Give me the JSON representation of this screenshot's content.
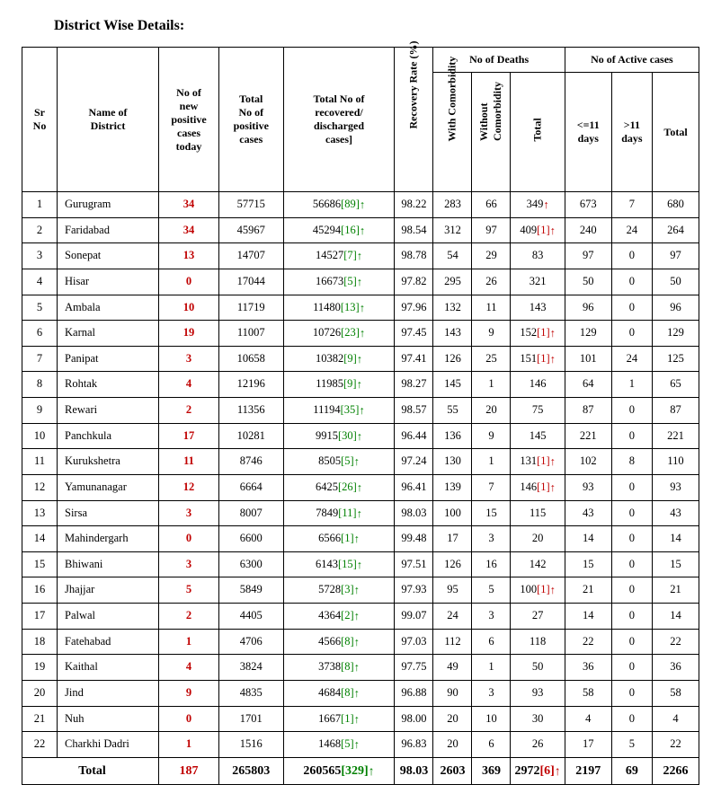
{
  "title": "District Wise Details:",
  "header": {
    "sr": "Sr\nNo",
    "district": "Name of\nDistrict",
    "new": "No of\nnew\npositive\ncases\ntoday",
    "total_pos": "Total\nNo of\npositive\ncases",
    "recovered": "Total No of\nrecovered/\ndischarged\ncases]",
    "recovery_rate": "Recovery Rate (%)",
    "deaths_group": "No of Deaths",
    "deaths_with": "With Comorbidity",
    "deaths_without": "Without\nComorbidity",
    "deaths_total": "Total",
    "active_group": "No of Active cases",
    "active_le11": "<=11\ndays",
    "active_gt11": ">11\ndays",
    "active_total": "Total"
  },
  "rows": [
    {
      "sr": "1",
      "district": "Gurugram",
      "new": "34",
      "total_pos": "57715",
      "rec_base": "56686",
      "rec_delta": "89",
      "rate": "98.22",
      "d_with": "283",
      "d_wo": "66",
      "d_total": "349",
      "d_delta": "",
      "a_le": "673",
      "a_gt": "7",
      "a_t": "680",
      "d_arrow": true
    },
    {
      "sr": "2",
      "district": "Faridabad",
      "new": "34",
      "total_pos": "45967",
      "rec_base": "45294",
      "rec_delta": "16",
      "rate": "98.54",
      "d_with": "312",
      "d_wo": "97",
      "d_total": "409",
      "d_delta": "1",
      "a_le": "240",
      "a_gt": "24",
      "a_t": "264",
      "d_arrow": true
    },
    {
      "sr": "3",
      "district": "Sonepat",
      "new": "13",
      "total_pos": "14707",
      "rec_base": "14527",
      "rec_delta": "7",
      "rate": "98.78",
      "d_with": "54",
      "d_wo": "29",
      "d_total": "83",
      "d_delta": "",
      "a_le": "97",
      "a_gt": "0",
      "a_t": "97",
      "d_arrow": false
    },
    {
      "sr": "4",
      "district": "Hisar",
      "new": "0",
      "total_pos": "17044",
      "rec_base": "16673",
      "rec_delta": "5",
      "rate": "97.82",
      "d_with": "295",
      "d_wo": "26",
      "d_total": "321",
      "d_delta": "",
      "a_le": "50",
      "a_gt": "0",
      "a_t": "50",
      "d_arrow": false
    },
    {
      "sr": "5",
      "district": "Ambala",
      "new": "10",
      "total_pos": "11719",
      "rec_base": "11480",
      "rec_delta": "13",
      "rate": "97.96",
      "d_with": "132",
      "d_wo": "11",
      "d_total": "143",
      "d_delta": "",
      "a_le": "96",
      "a_gt": "0",
      "a_t": "96",
      "d_arrow": false
    },
    {
      "sr": "6",
      "district": "Karnal",
      "new": "19",
      "total_pos": "11007",
      "rec_base": "10726",
      "rec_delta": "23",
      "rate": "97.45",
      "d_with": "143",
      "d_wo": "9",
      "d_total": "152",
      "d_delta": "1",
      "a_le": "129",
      "a_gt": "0",
      "a_t": "129",
      "d_arrow": true
    },
    {
      "sr": "7",
      "district": "Panipat",
      "new": "3",
      "total_pos": "10658",
      "rec_base": "10382",
      "rec_delta": "9",
      "rate": "97.41",
      "d_with": "126",
      "d_wo": "25",
      "d_total": "151",
      "d_delta": "1",
      "a_le": "101",
      "a_gt": "24",
      "a_t": "125",
      "d_arrow": true
    },
    {
      "sr": "8",
      "district": "Rohtak",
      "new": "4",
      "total_pos": "12196",
      "rec_base": "11985",
      "rec_delta": "9",
      "rate": "98.27",
      "d_with": "145",
      "d_wo": "1",
      "d_total": "146",
      "d_delta": "",
      "a_le": "64",
      "a_gt": "1",
      "a_t": "65",
      "d_arrow": false
    },
    {
      "sr": "9",
      "district": "Rewari",
      "new": "2",
      "total_pos": "11356",
      "rec_base": "11194",
      "rec_delta": "35",
      "rate": "98.57",
      "d_with": "55",
      "d_wo": "20",
      "d_total": "75",
      "d_delta": "",
      "a_le": "87",
      "a_gt": "0",
      "a_t": "87",
      "d_arrow": false
    },
    {
      "sr": "10",
      "district": "Panchkula",
      "new": "17",
      "total_pos": "10281",
      "rec_base": "9915",
      "rec_delta": "30",
      "rate": "96.44",
      "d_with": "136",
      "d_wo": "9",
      "d_total": "145",
      "d_delta": "",
      "a_le": "221",
      "a_gt": "0",
      "a_t": "221",
      "d_arrow": false
    },
    {
      "sr": "11",
      "district": "Kurukshetra",
      "new": "11",
      "total_pos": "8746",
      "rec_base": "8505",
      "rec_delta": "5",
      "rate": "97.24",
      "d_with": "130",
      "d_wo": "1",
      "d_total": "131",
      "d_delta": "1",
      "a_le": "102",
      "a_gt": "8",
      "a_t": "110",
      "d_arrow": true
    },
    {
      "sr": "12",
      "district": "Yamunanagar",
      "new": "12",
      "total_pos": "6664",
      "rec_base": "6425",
      "rec_delta": "26",
      "rate": "96.41",
      "d_with": "139",
      "d_wo": "7",
      "d_total": "146",
      "d_delta": "1",
      "a_le": "93",
      "a_gt": "0",
      "a_t": "93",
      "d_arrow": true
    },
    {
      "sr": "13",
      "district": "Sirsa",
      "new": "3",
      "total_pos": "8007",
      "rec_base": "7849",
      "rec_delta": "11",
      "rate": "98.03",
      "d_with": "100",
      "d_wo": "15",
      "d_total": "115",
      "d_delta": "",
      "a_le": "43",
      "a_gt": "0",
      "a_t": "43",
      "d_arrow": false
    },
    {
      "sr": "14",
      "district": "Mahindergarh",
      "new": "0",
      "total_pos": "6600",
      "rec_base": "6566",
      "rec_delta": "1",
      "rate": "99.48",
      "d_with": "17",
      "d_wo": "3",
      "d_total": "20",
      "d_delta": "",
      "a_le": "14",
      "a_gt": "0",
      "a_t": "14",
      "d_arrow": false
    },
    {
      "sr": "15",
      "district": "Bhiwani",
      "new": "3",
      "total_pos": "6300",
      "rec_base": "6143",
      "rec_delta": "15",
      "rate": "97.51",
      "d_with": "126",
      "d_wo": "16",
      "d_total": "142",
      "d_delta": "",
      "a_le": "15",
      "a_gt": "0",
      "a_t": "15",
      "d_arrow": false
    },
    {
      "sr": "16",
      "district": "Jhajjar",
      "new": "5",
      "total_pos": "5849",
      "rec_base": "5728",
      "rec_delta": "3",
      "rate": "97.93",
      "d_with": "95",
      "d_wo": "5",
      "d_total": "100",
      "d_delta": "1",
      "a_le": "21",
      "a_gt": "0",
      "a_t": "21",
      "d_arrow": true
    },
    {
      "sr": "17",
      "district": "Palwal",
      "new": "2",
      "total_pos": "4405",
      "rec_base": "4364",
      "rec_delta": "2",
      "rate": "99.07",
      "d_with": "24",
      "d_wo": "3",
      "d_total": "27",
      "d_delta": "",
      "a_le": "14",
      "a_gt": "0",
      "a_t": "14",
      "d_arrow": false
    },
    {
      "sr": "18",
      "district": "Fatehabad",
      "new": "1",
      "total_pos": "4706",
      "rec_base": "4566",
      "rec_delta": "8",
      "rate": "97.03",
      "d_with": "112",
      "d_wo": "6",
      "d_total": "118",
      "d_delta": "",
      "a_le": "22",
      "a_gt": "0",
      "a_t": "22",
      "d_arrow": false
    },
    {
      "sr": "19",
      "district": "Kaithal",
      "new": "4",
      "total_pos": "3824",
      "rec_base": "3738",
      "rec_delta": "8",
      "rate": "97.75",
      "d_with": "49",
      "d_wo": "1",
      "d_total": "50",
      "d_delta": "",
      "a_le": "36",
      "a_gt": "0",
      "a_t": "36",
      "d_arrow": false
    },
    {
      "sr": "20",
      "district": "Jind",
      "new": "9",
      "total_pos": "4835",
      "rec_base": "4684",
      "rec_delta": "8",
      "rate": "96.88",
      "d_with": "90",
      "d_wo": "3",
      "d_total": "93",
      "d_delta": "",
      "a_le": "58",
      "a_gt": "0",
      "a_t": "58",
      "d_arrow": false
    },
    {
      "sr": "21",
      "district": "Nuh",
      "new": "0",
      "total_pos": "1701",
      "rec_base": "1667",
      "rec_delta": "1",
      "rate": "98.00",
      "d_with": "20",
      "d_wo": "10",
      "d_total": "30",
      "d_delta": "",
      "a_le": "4",
      "a_gt": "0",
      "a_t": "4",
      "d_arrow": false
    },
    {
      "sr": "22",
      "district": "Charkhi Dadri",
      "new": "1",
      "total_pos": "1516",
      "rec_base": "1468",
      "rec_delta": "5",
      "rate": "96.83",
      "d_with": "20",
      "d_wo": "6",
      "d_total": "26",
      "d_delta": "",
      "a_le": "17",
      "a_gt": "5",
      "a_t": "22",
      "d_arrow": false
    }
  ],
  "total": {
    "label": "Total",
    "new": "187",
    "total_pos": "265803",
    "rec_base": "260565",
    "rec_delta": "329",
    "rate": "98.03",
    "d_with": "2603",
    "d_wo": "369",
    "d_total": "2972",
    "d_delta": "6",
    "a_le": "2197",
    "a_gt": "69",
    "a_t": "2266",
    "d_arrow": true
  },
  "colors": {
    "red": "#c00000",
    "green": "#008000",
    "border": "#000000",
    "text": "#000000",
    "background": "#ffffff"
  }
}
